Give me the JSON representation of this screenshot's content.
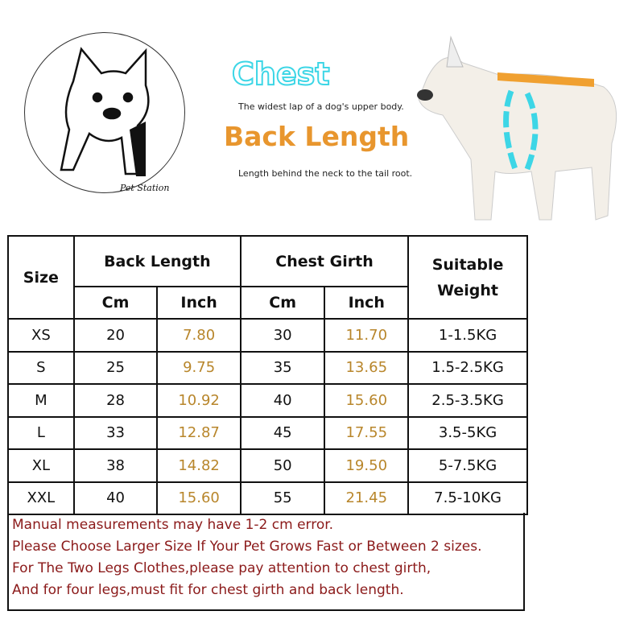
{
  "logo": {
    "brand": "Pet Station"
  },
  "legend": {
    "chest_title": "Chest",
    "chest_desc": "The widest lap of a dog's upper body.",
    "back_title": "Back Length",
    "back_desc": "Length behind the neck to the tail root.",
    "colors": {
      "chest": "#3dd6e6",
      "back": "#e8962e"
    }
  },
  "table": {
    "headers": {
      "size": "Size",
      "back_length": "Back Length",
      "chest_girth": "Chest Girth",
      "weight": "Suitable Weight",
      "cm": "Cm",
      "inch": "Inch"
    },
    "rows": [
      {
        "size": "XS",
        "back_cm": "20",
        "back_inch": "7.80",
        "chest_cm": "30",
        "chest_inch": "11.70",
        "weight": "1-1.5KG"
      },
      {
        "size": "S",
        "back_cm": "25",
        "back_inch": "9.75",
        "chest_cm": "35",
        "chest_inch": "13.65",
        "weight": "1.5-2.5KG"
      },
      {
        "size": "M",
        "back_cm": "28",
        "back_inch": "10.92",
        "chest_cm": "40",
        "chest_inch": "15.60",
        "weight": "2.5-3.5KG"
      },
      {
        "size": "L",
        "back_cm": "33",
        "back_inch": "12.87",
        "chest_cm": "45",
        "chest_inch": "17.55",
        "weight": "3.5-5KG"
      },
      {
        "size": "XL",
        "back_cm": "38",
        "back_inch": "14.82",
        "chest_cm": "50",
        "chest_inch": "19.50",
        "weight": "5-7.5KG"
      },
      {
        "size": "XXL",
        "back_cm": "40",
        "back_inch": "15.60",
        "chest_cm": "55",
        "chest_inch": "21.45",
        "weight": "7.5-10KG"
      }
    ]
  },
  "notes": [
    "Manual measurements may have 1-2 cm error.",
    "Please Choose Larger Size If Your Pet Grows Fast or Between 2 sizes.",
    "For The Two Legs Clothes,please pay attention to chest girth,",
    "And for four legs,must fit for chest girth and back length."
  ]
}
